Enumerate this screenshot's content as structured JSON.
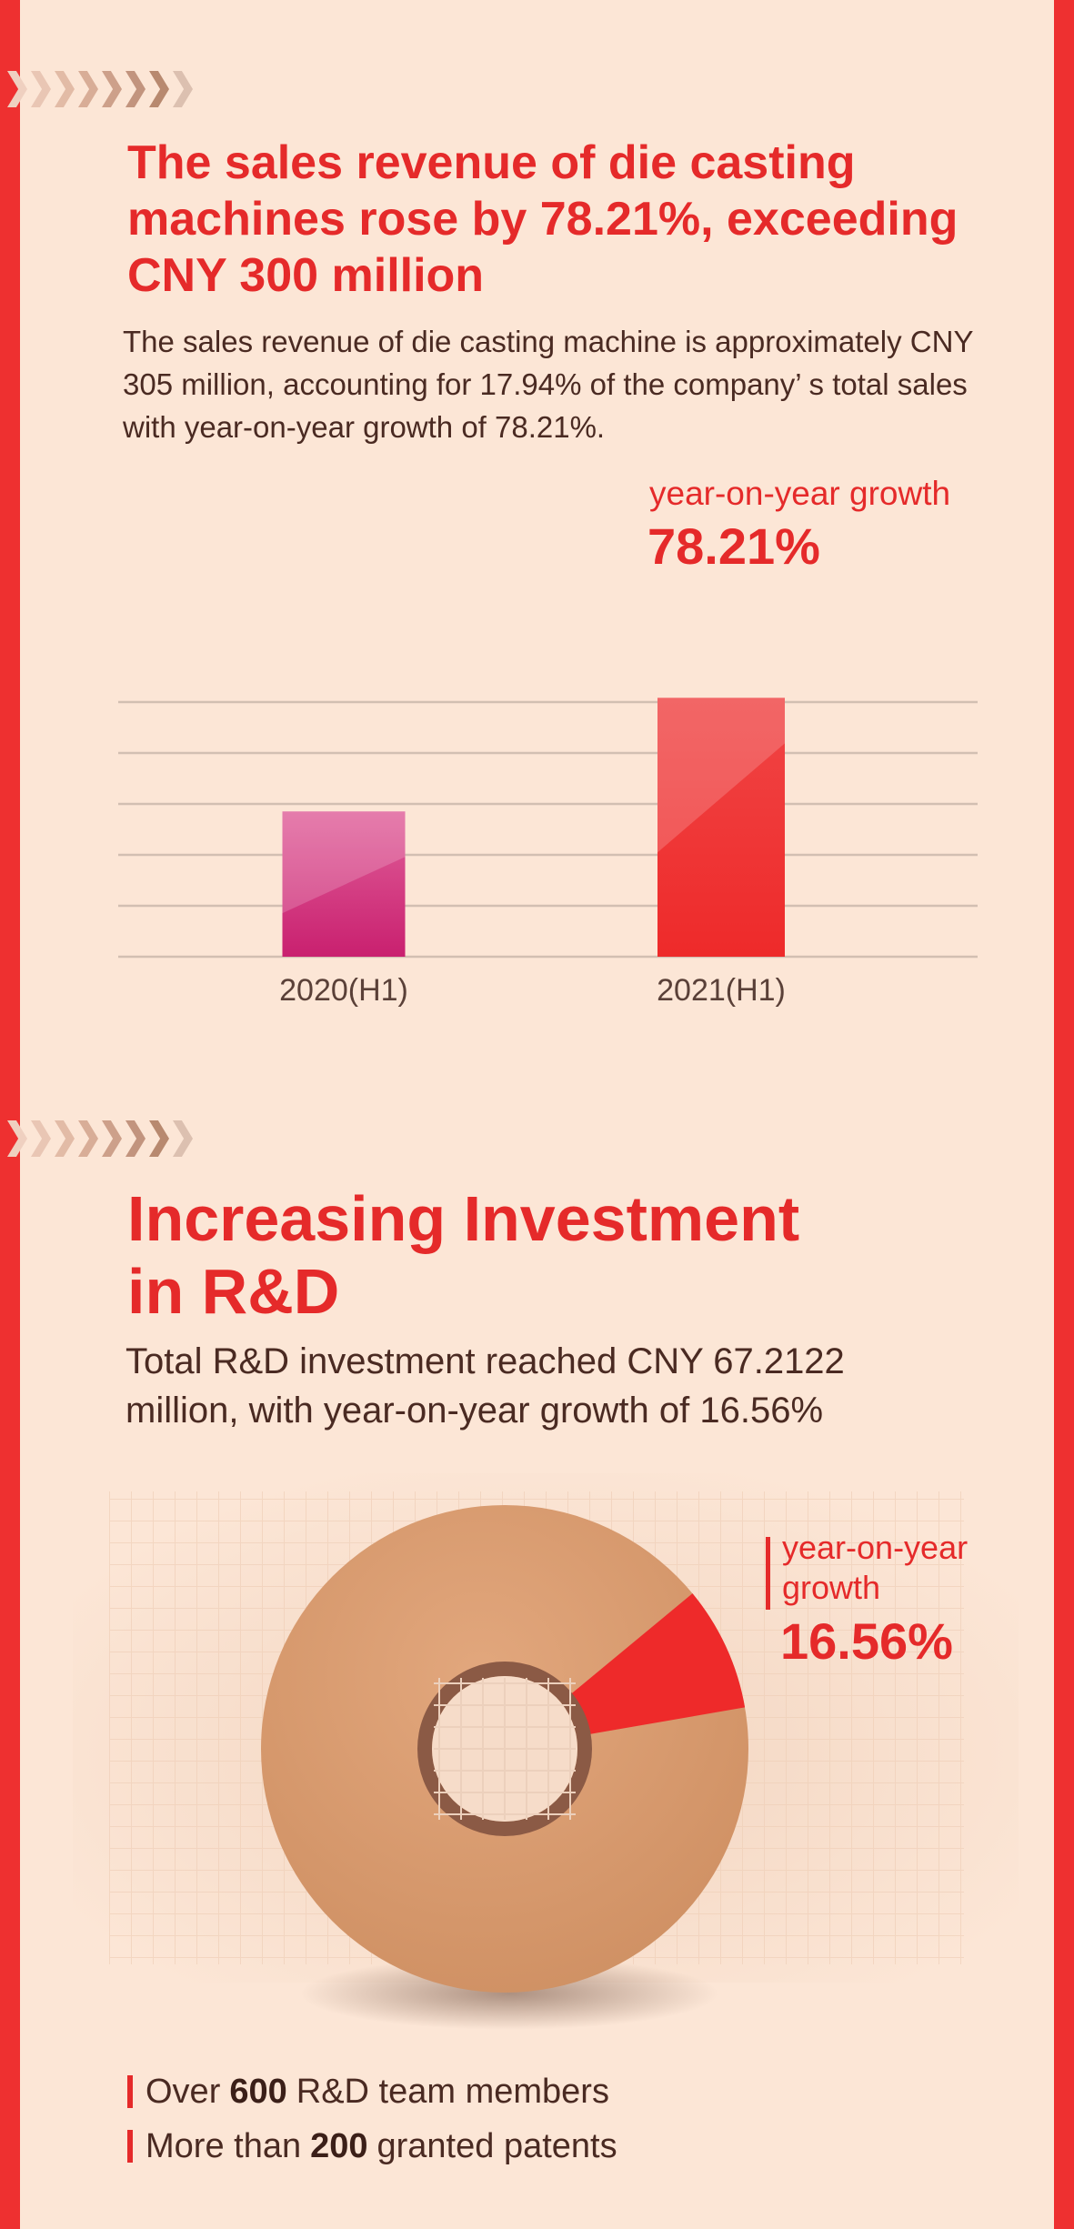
{
  "colors": {
    "background": "#fce6d6",
    "accent_red": "#ee3030",
    "title_red": "#e52a2a",
    "text_brown": "#4a2a22",
    "bar_2020": "#d0357a",
    "bar_2021": "#ef2d2d",
    "donut_tan": "#d49568",
    "donut_ring": "#8b5a45"
  },
  "section1": {
    "title": "The sales revenue of die casting machines rose by 78.21%, exceeding CNY 300 million",
    "text": "The sales revenue of die casting machine is approximately CNY 305 million, accounting for 17.94% of the company’ s total sales with year-on-year growth of 78.21%.",
    "growth_label": "year-on-year growth",
    "growth_value": "78.21%"
  },
  "section2": {
    "title_line1": "Increasing Investment",
    "title_line2": "in R&D",
    "text": "Total R&D investment reached CNY 67.2122 million, with year-on-year growth of 16.56%",
    "growth_label_line1": "year-on-year",
    "growth_label_line2": "growth",
    "growth_value": "16.56%"
  },
  "bullets": [
    {
      "prefix": "Over",
      "number": "600",
      "suffix": "R&D team members"
    },
    {
      "prefix": "More than",
      "number": "200",
      "suffix": "granted patents"
    }
  ],
  "chart_data": [
    {
      "type": "bar",
      "categories": [
        "2020(H1)",
        "2021(H1)"
      ],
      "values": [
        171.15,
        305
      ],
      "ylim": [
        0,
        300
      ],
      "grid": true,
      "annotation": "year-on-year growth 78.21%"
    },
    {
      "type": "pie",
      "labels": [
        "",
        "year-on-year growth"
      ],
      "values": [
        83.44,
        16.56
      ],
      "annotation": "16.56%"
    }
  ]
}
